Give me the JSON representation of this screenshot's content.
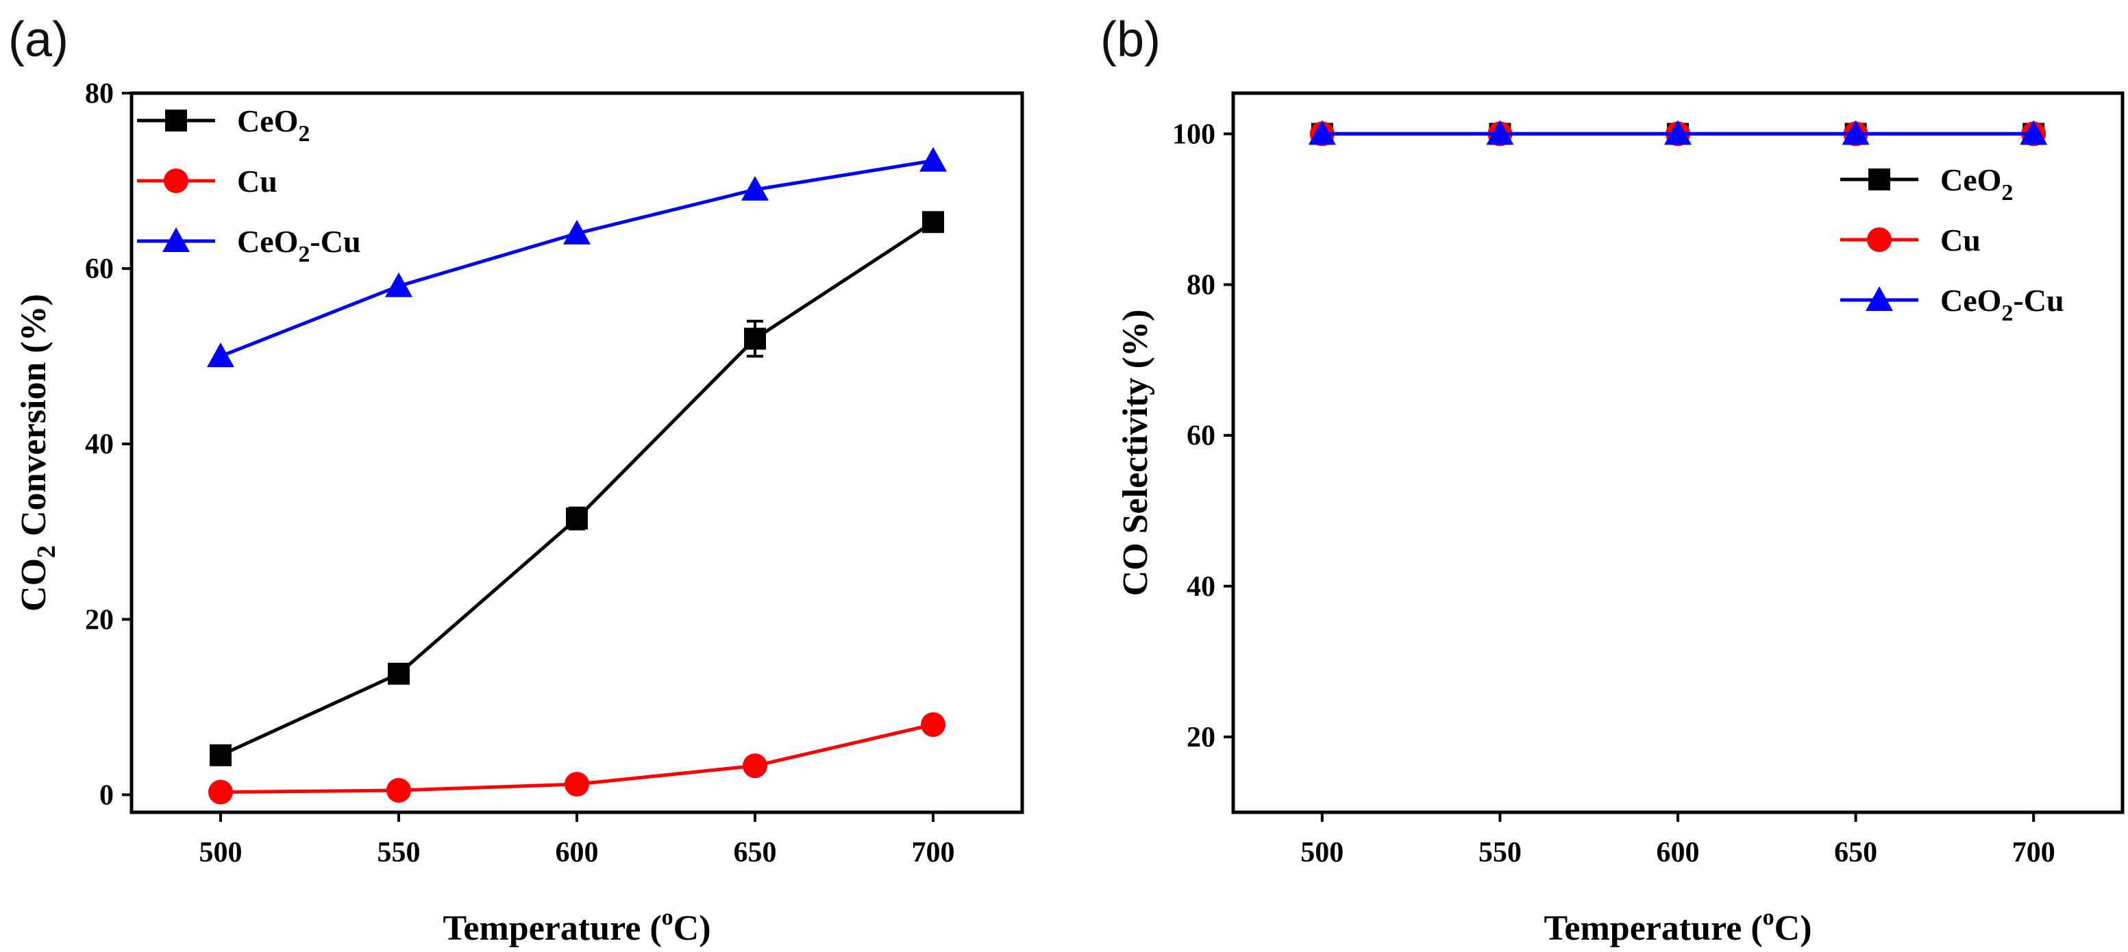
{
  "chart_data": [
    {
      "panel_label": "(a)",
      "type": "line",
      "x": [
        500,
        550,
        600,
        650,
        700
      ],
      "xlim": [
        475,
        725
      ],
      "ylim": [
        -2,
        80
      ],
      "xticks": [
        "500",
        "550",
        "600",
        "650",
        "700"
      ],
      "yticks": [
        "0",
        "20",
        "40",
        "60",
        "80"
      ],
      "xlabel": {
        "main": "Temperature (",
        "sup": "o",
        "tail": "C)"
      },
      "ylabel": {
        "main": "CO",
        "sub": "2",
        "tail": " Conversion (%)"
      },
      "legend_position": "top-left",
      "series": [
        {
          "name": "CeO2",
          "label_main": "CeO",
          "label_sub": "2",
          "label_tail": "",
          "color": "#000000",
          "marker": "square",
          "values": [
            4.5,
            13.8,
            31.5,
            52,
            65.3
          ],
          "errors": [
            0.6,
            0.8,
            1.2,
            2.0,
            1.0
          ]
        },
        {
          "name": "Cu",
          "label_main": " Cu",
          "label_sub": "",
          "label_tail": "",
          "color": "#ff0000",
          "marker": "circle",
          "values": [
            0.3,
            0.5,
            1.2,
            3.3,
            8.0
          ],
          "errors": [
            0,
            0,
            0,
            0,
            0
          ]
        },
        {
          "name": "CeO2-Cu",
          "label_main": "CeO",
          "label_sub": "2",
          "label_tail": "-Cu",
          "color": "#0000ff",
          "marker": "triangle",
          "values": [
            50,
            58,
            64,
            69,
            72.3
          ],
          "errors": [
            0,
            0,
            0,
            0,
            0
          ]
        }
      ]
    },
    {
      "panel_label": "(b)",
      "type": "line",
      "x": [
        500,
        550,
        600,
        650,
        700
      ],
      "xlim": [
        475,
        725
      ],
      "ylim": [
        10,
        105.4
      ],
      "xticks": [
        "500",
        "550",
        "600",
        "650",
        "700"
      ],
      "yticks": [
        "20",
        "40",
        "60",
        "80",
        "100"
      ],
      "xlabel": {
        "main": "Temperature (",
        "sup": "o",
        "tail": "C)"
      },
      "ylabel": {
        "main": "CO Selectivity (%)",
        "sub": "",
        "tail": ""
      },
      "legend_position": "top-right",
      "series": [
        {
          "name": "CeO2",
          "label_main": "CeO",
          "label_sub": "2",
          "label_tail": "",
          "color": "#000000",
          "marker": "square",
          "values": [
            100,
            100,
            100,
            100,
            100
          ],
          "errors": [
            0,
            0,
            0,
            0,
            0
          ]
        },
        {
          "name": "Cu",
          "label_main": " Cu",
          "label_sub": "",
          "label_tail": "",
          "color": "#ff0000",
          "marker": "circle",
          "values": [
            100,
            100,
            100,
            100,
            100
          ],
          "errors": [
            0,
            0,
            0,
            0,
            0
          ]
        },
        {
          "name": "CeO2-Cu",
          "label_main": "CeO",
          "label_sub": "2",
          "label_tail": "-Cu",
          "color": "#0000ff",
          "marker": "triangle",
          "values": [
            100,
            100,
            100,
            100,
            100
          ],
          "errors": [
            0,
            0,
            0,
            0,
            0
          ]
        }
      ]
    }
  ]
}
